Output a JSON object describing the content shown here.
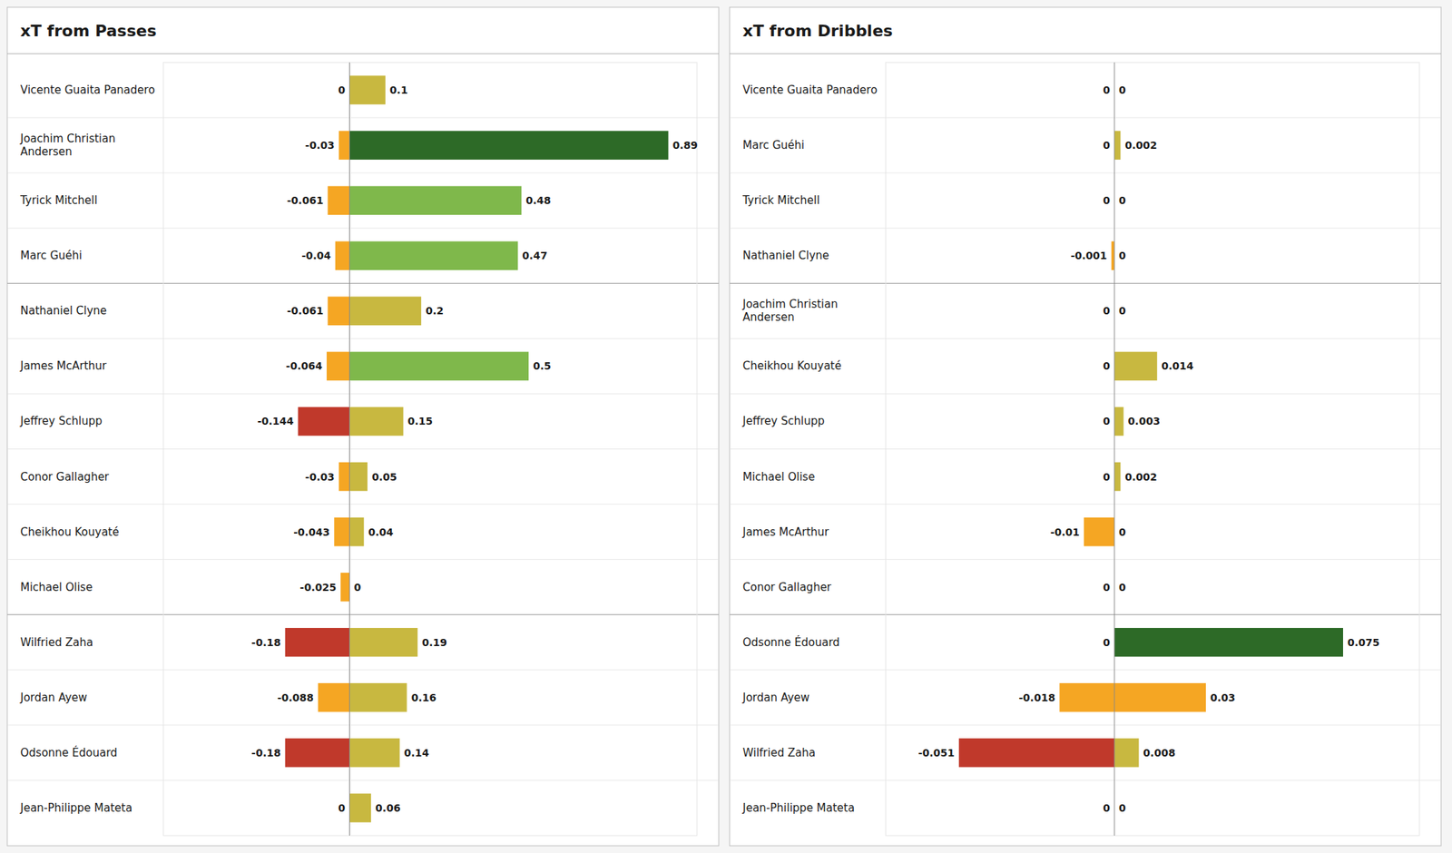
{
  "chart_data": [
    {
      "type": "bar",
      "orientation": "horizontal",
      "title": "xT from Passes",
      "categories": [
        "Vicente Guaita Panadero",
        "Joachim Christian\nAndersen",
        "Tyrick Mitchell",
        "Marc Guéhi",
        "Nathaniel Clyne",
        "James McArthur",
        "Jeffrey  Schlupp",
        "Conor Gallagher",
        "Cheikhou Kouyaté",
        "Michael Olise",
        "Wilfried Zaha",
        "Jordan Ayew",
        "Odsonne Édouard",
        "Jean-Philippe Mateta"
      ],
      "series": [
        {
          "values": [
            0,
            -0.03,
            -0.061,
            -0.04,
            -0.061,
            -0.064,
            -0.144,
            -0.03,
            -0.043,
            -0.025,
            -0.18,
            -0.088,
            -0.18,
            0
          ],
          "colors": [
            "#f5a623",
            "#f5a623",
            "#f5a623",
            "#f5a623",
            "#f5a623",
            "#f5a623",
            "#c0392b",
            "#f5a623",
            "#f5a623",
            "#f5a623",
            "#c0392b",
            "#f5a623",
            "#c0392b",
            "#f5a623"
          ]
        },
        {
          "values": [
            0.1,
            0.89,
            0.48,
            0.47,
            0.2,
            0.5,
            0.15,
            0.05,
            0.04,
            0,
            0.19,
            0.16,
            0.14,
            0.06
          ],
          "colors": [
            "#c8b840",
            "#2d6a27",
            "#7fb84b",
            "#7fb84b",
            "#c8b840",
            "#7fb84b",
            "#c8b840",
            "#c8b840",
            "#c8b840",
            "#c8b840",
            "#c8b840",
            "#c8b840",
            "#c8b840",
            "#c8b840"
          ]
        }
      ],
      "xlim": [
        -0.52,
        0.97
      ],
      "data_labels": true,
      "tick_labels": "y"
    },
    {
      "type": "bar",
      "orientation": "horizontal",
      "title": "xT from Dribbles",
      "categories": [
        "Vicente Guaita Panadero",
        "Marc Guéhi",
        "Tyrick Mitchell",
        "Nathaniel Clyne",
        "Joachim Christian\nAndersen",
        "Cheikhou Kouyaté",
        "Jeffrey  Schlupp",
        "Michael Olise",
        "James McArthur",
        "Conor Gallagher",
        "Odsonne Édouard",
        "Jordan Ayew",
        "Wilfried Zaha",
        "Jean-Philippe Mateta"
      ],
      "series": [
        {
          "values": [
            0,
            0,
            0,
            -0.001,
            0,
            0,
            0,
            0,
            -0.01,
            0,
            0,
            -0.018,
            -0.051,
            0
          ],
          "colors": [
            "#f5a623",
            "#f5a623",
            "#f5a623",
            "#f5a623",
            "#f5a623",
            "#f5a623",
            "#f5a623",
            "#f5a623",
            "#f5a623",
            "#f5a623",
            "#f5a623",
            "#f5a623",
            "#c0392b",
            "#f5a623"
          ]
        },
        {
          "values": [
            0,
            0.002,
            0,
            0,
            0,
            0.014,
            0.003,
            0.002,
            0,
            0,
            0.075,
            0.03,
            0.008,
            0
          ],
          "colors": [
            "#c8b840",
            "#c8b840",
            "#c8b840",
            "#c8b840",
            "#c8b840",
            "#c8b840",
            "#c8b840",
            "#c8b840",
            "#c8b840",
            "#c8b840",
            "#2d6a27",
            "#f5a623",
            "#c8b840",
            "#c8b840"
          ]
        }
      ],
      "xlim": [
        -0.075,
        0.1
      ],
      "data_labels": true,
      "tick_labels": "y"
    }
  ]
}
